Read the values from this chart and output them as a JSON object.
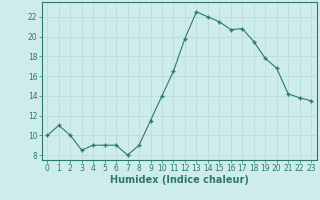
{
  "x": [
    0,
    1,
    2,
    3,
    4,
    5,
    6,
    7,
    8,
    9,
    10,
    11,
    12,
    13,
    14,
    15,
    16,
    17,
    18,
    19,
    20,
    21,
    22,
    23
  ],
  "y": [
    10.0,
    11.0,
    10.0,
    8.5,
    9.0,
    9.0,
    9.0,
    8.0,
    9.0,
    11.5,
    14.0,
    16.5,
    19.8,
    22.5,
    22.0,
    21.5,
    20.7,
    20.8,
    19.5,
    17.8,
    16.8,
    14.2,
    13.8,
    13.5
  ],
  "line_color": "#2d7a6a",
  "marker_color": "#2d7a6a",
  "bg_color": "#cdecea",
  "grid_color": "#b8dcd8",
  "xlabel": "Humidex (Indice chaleur)",
  "ylim": [
    7.5,
    23.5
  ],
  "xlim": [
    -0.5,
    23.5
  ],
  "yticks": [
    8,
    10,
    12,
    14,
    16,
    18,
    20,
    22
  ],
  "xticks": [
    0,
    1,
    2,
    3,
    4,
    5,
    6,
    7,
    8,
    9,
    10,
    11,
    12,
    13,
    14,
    15,
    16,
    17,
    18,
    19,
    20,
    21,
    22,
    23
  ],
  "tick_fontsize": 5.5,
  "label_fontsize": 7
}
